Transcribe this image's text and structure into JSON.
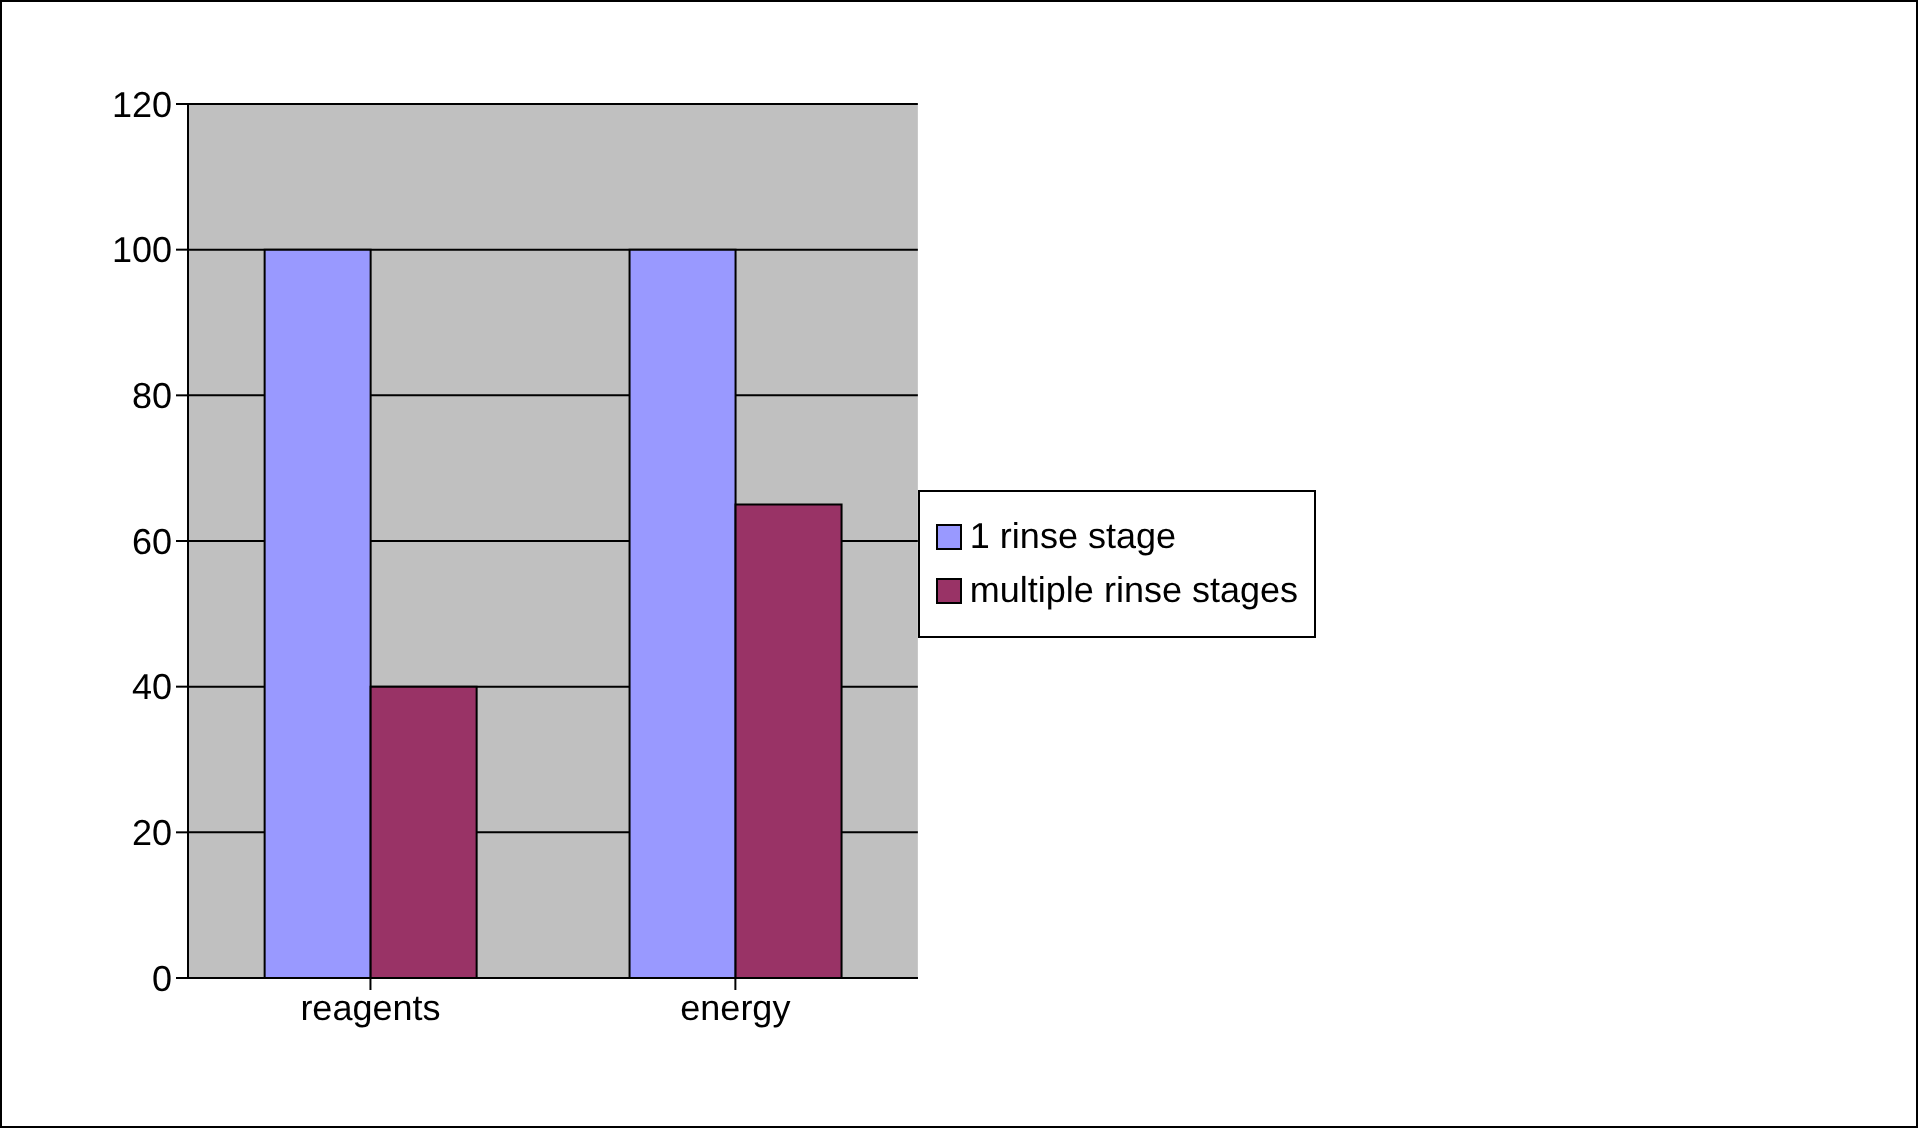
{
  "chart_data": {
    "type": "bar",
    "categories": [
      "reagents",
      "energy"
    ],
    "series": [
      {
        "name": "1 rinse stage",
        "color": "#9999ff",
        "values": [
          100,
          100
        ]
      },
      {
        "name": "multiple rinse stages",
        "color": "#993366",
        "values": [
          40,
          65
        ]
      }
    ],
    "ylim": [
      0,
      120
    ],
    "yticks": [
      0,
      20,
      40,
      60,
      80,
      100,
      120
    ],
    "grid": "y",
    "legend": "right"
  }
}
